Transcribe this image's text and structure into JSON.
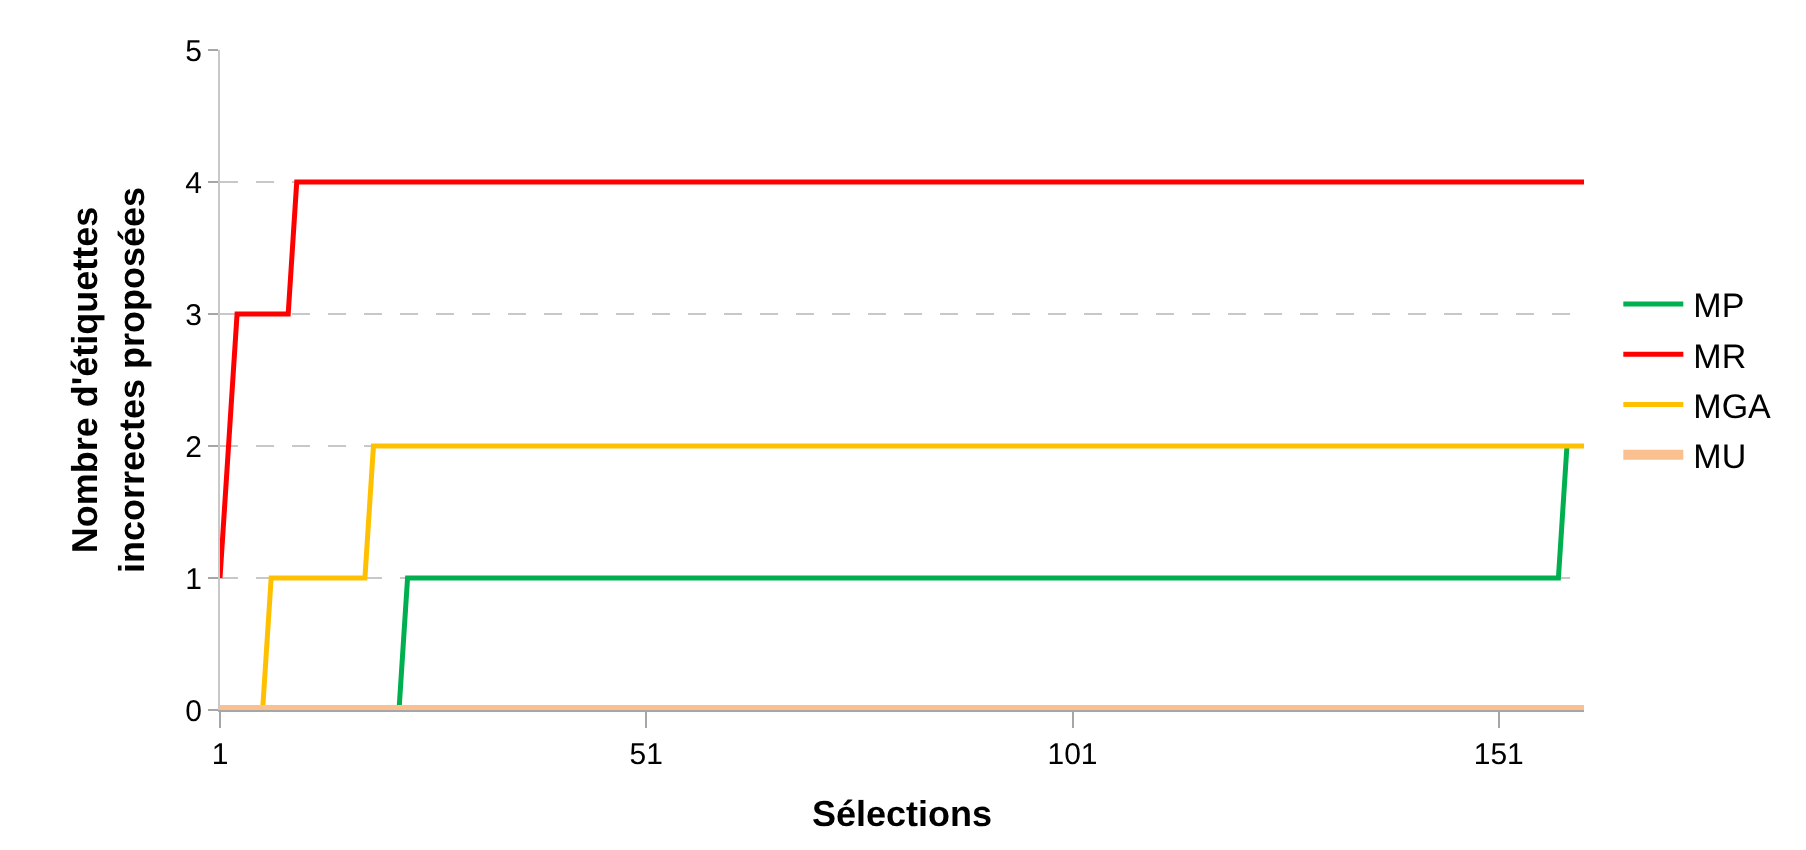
{
  "chart_data": {
    "type": "line",
    "xlabel": "Sélections",
    "ylabel": "Nombre d'étiquettes\nincorrectes proposées",
    "xlim": [
      1,
      161
    ],
    "xticks": [
      1,
      51,
      101,
      151
    ],
    "ylim": [
      0,
      5
    ],
    "yticks": [
      0,
      1,
      2,
      3,
      4,
      5
    ],
    "grid": "y",
    "legend": "right",
    "marker": "none",
    "line_style": "solid",
    "series": [
      {
        "name": "MP",
        "color": "#00b050",
        "x": [
          1,
          22,
          23,
          158,
          159
        ],
        "values": [
          0,
          0,
          1,
          1,
          2
        ]
      },
      {
        "name": "MR",
        "color": "#ff0000",
        "x": [
          1,
          3,
          9,
          10,
          161
        ],
        "values": [
          1,
          3,
          3,
          4,
          4
        ]
      },
      {
        "name": "MGA",
        "color": "#ffc000",
        "x": [
          1,
          6,
          7,
          18,
          19,
          161
        ],
        "values": [
          0,
          0,
          1,
          1,
          2,
          2
        ]
      },
      {
        "name": "MU",
        "color": "#fac090",
        "x": [
          1,
          161
        ],
        "values": [
          0,
          0
        ]
      }
    ]
  }
}
